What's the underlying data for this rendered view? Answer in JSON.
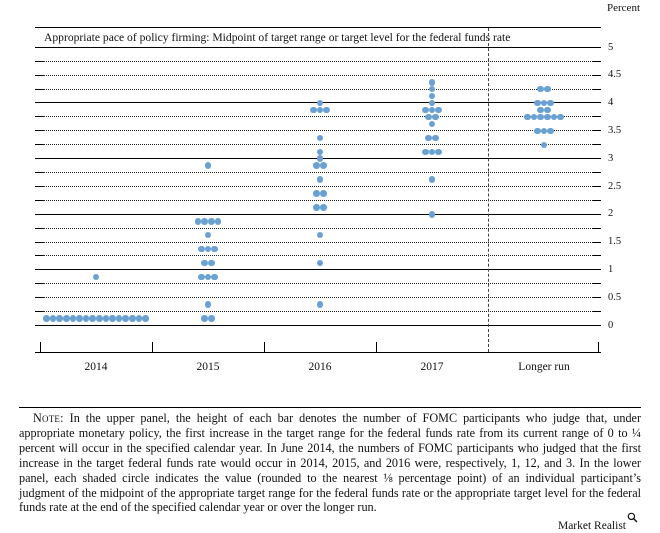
{
  "header": {
    "unit_label": "Percent"
  },
  "chart": {
    "title": "Appropriate pace of policy firming: Midpoint of target range or target level for the federal funds rate",
    "dot_color": "#6ba1d2",
    "separator_style": "dashed",
    "y_axis": {
      "labels": [
        "5",
        "4.5",
        "4",
        "3.5",
        "3",
        "2.5",
        "2",
        "1.5",
        "1",
        "0.5",
        "0"
      ]
    },
    "x_axis": {
      "categories": [
        "2014",
        "2015",
        "2016",
        "2017",
        "Longer run"
      ]
    }
  },
  "chart_data": {
    "type": "scatter",
    "subtype": "fomc-dot-plot",
    "title": "Appropriate pace of policy firming: Midpoint of target range or target level for the federal funds rate",
    "unit": "Percent",
    "ylim": [
      0,
      5
    ],
    "gridlines": {
      "solid_every": 1,
      "dotted_every": 0.25
    },
    "legend_position": "none",
    "categories": [
      "2014",
      "2015",
      "2016",
      "2017",
      "Longer run"
    ],
    "series": [
      {
        "category": "2014",
        "dots": [
          {
            "value": 0.875,
            "count": 1
          },
          {
            "value": 0.125,
            "count": 16
          }
        ]
      },
      {
        "category": "2015",
        "dots": [
          {
            "value": 2.875,
            "count": 1
          },
          {
            "value": 1.875,
            "count": 4
          },
          {
            "value": 1.625,
            "count": 1
          },
          {
            "value": 1.375,
            "count": 3
          },
          {
            "value": 1.125,
            "count": 2
          },
          {
            "value": 0.875,
            "count": 3
          },
          {
            "value": 0.375,
            "count": 1
          },
          {
            "value": 0.125,
            "count": 2
          }
        ]
      },
      {
        "category": "2016",
        "dots": [
          {
            "value": 4.0,
            "count": 1
          },
          {
            "value": 3.875,
            "count": 3
          },
          {
            "value": 3.375,
            "count": 1
          },
          {
            "value": 3.125,
            "count": 1
          },
          {
            "value": 3.0,
            "count": 1
          },
          {
            "value": 2.875,
            "count": 2
          },
          {
            "value": 2.625,
            "count": 1
          },
          {
            "value": 2.375,
            "count": 2
          },
          {
            "value": 2.125,
            "count": 2
          },
          {
            "value": 1.625,
            "count": 1
          },
          {
            "value": 1.125,
            "count": 1
          },
          {
            "value": 0.375,
            "count": 1
          }
        ]
      },
      {
        "category": "2017",
        "dots": [
          {
            "value": 4.375,
            "count": 1
          },
          {
            "value": 4.25,
            "count": 1
          },
          {
            "value": 4.125,
            "count": 1
          },
          {
            "value": 4.0,
            "count": 1
          },
          {
            "value": 3.875,
            "count": 3
          },
          {
            "value": 3.75,
            "count": 2
          },
          {
            "value": 3.625,
            "count": 1
          },
          {
            "value": 3.375,
            "count": 2
          },
          {
            "value": 3.125,
            "count": 3
          },
          {
            "value": 2.625,
            "count": 1
          },
          {
            "value": 2.0,
            "count": 1
          }
        ]
      },
      {
        "category": "Longer run",
        "dots": [
          {
            "value": 4.25,
            "count": 2
          },
          {
            "value": 4.0,
            "count": 3
          },
          {
            "value": 3.875,
            "count": 2
          },
          {
            "value": 3.75,
            "count": 6
          },
          {
            "value": 3.5,
            "count": 3
          },
          {
            "value": 3.25,
            "count": 1
          }
        ]
      }
    ]
  },
  "note": {
    "label": "Note:",
    "text": "In the upper panel, the height of each bar denotes the number of FOMC participants who judge that, under appropriate monetary policy, the first increase in the target range for the federal funds rate from its current range of 0 to ¼ percent will occur in the specified calendar year. In June 2014, the numbers of FOMC participants who judged that the first increase in the target federal funds rate would occur in 2014, 2015, and 2016 were, respectively, 1, 12, and 3. In the lower panel, each shaded circle indicates the value (rounded to the nearest ⅛ percentage point) of an individual participant’s judgment of the midpoint of the appropriate target range for the federal funds rate or the appropriate target level for the federal funds rate at the end of the specified calendar year or over the longer run."
  },
  "branding": {
    "name": "Market Realist",
    "icon": "magnifier-icon"
  }
}
